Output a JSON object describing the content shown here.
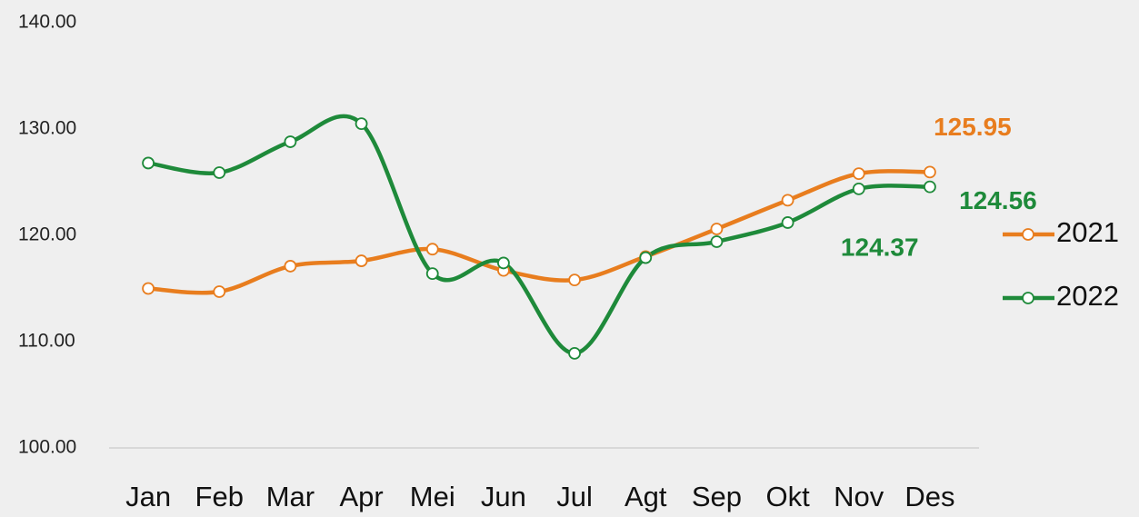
{
  "chart_data": {
    "type": "line",
    "categories": [
      "Jan",
      "Feb",
      "Mar",
      "Apr",
      "Mei",
      "Jun",
      "Jul",
      "Agt",
      "Sep",
      "Okt",
      "Nov",
      "Des"
    ],
    "series": [
      {
        "name": "2021",
        "color": "#e87d1e",
        "values": [
          115.0,
          114.7,
          117.1,
          117.6,
          118.7,
          116.7,
          115.8,
          118.0,
          120.6,
          123.3,
          125.8,
          125.95
        ],
        "value_labels": [
          null,
          null,
          null,
          null,
          null,
          null,
          null,
          null,
          null,
          null,
          null,
          "125.95"
        ]
      },
      {
        "name": "2022",
        "color": "#1e8a3a",
        "values": [
          126.8,
          125.9,
          128.8,
          130.5,
          116.4,
          117.4,
          108.9,
          117.9,
          119.4,
          121.2,
          124.37,
          124.56
        ],
        "value_labels": [
          null,
          null,
          null,
          null,
          null,
          null,
          null,
          null,
          null,
          null,
          "124.37",
          "124.56"
        ]
      }
    ],
    "ylim": [
      100,
      140
    ],
    "yticks": [
      {
        "value": 100,
        "label": "100.00"
      },
      {
        "value": 110,
        "label": "110.00"
      },
      {
        "value": 120,
        "label": "120.00"
      },
      {
        "value": 130,
        "label": "130.00"
      },
      {
        "value": 140,
        "label": "140.00"
      }
    ],
    "smooth": true,
    "legend": "right"
  }
}
